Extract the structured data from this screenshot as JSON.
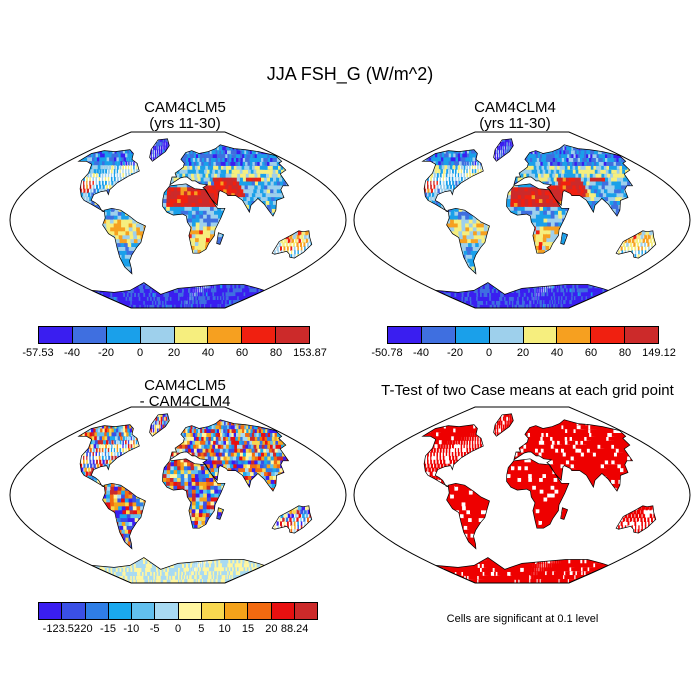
{
  "figure": {
    "title": "JJA FSH_G (W/m^2)"
  },
  "panels": [
    {
      "title_line1": "CAM4CLM5",
      "title_line2": "(yrs 11-30)",
      "variant": "case1"
    },
    {
      "title_line1": "CAM4CLM4",
      "title_line2": "(yrs 11-30)",
      "variant": "case2"
    },
    {
      "title_line1": "CAM4CLM5",
      "title_line2": "- CAM4CLM4",
      "variant": "diff"
    },
    {
      "title_line1": "T-Test of two Case means at each grid point",
      "title_line2": "",
      "variant": "ttest"
    }
  ],
  "colorbars": [
    {
      "labels": [
        "-57.53",
        "-40",
        "-20",
        "0",
        "20",
        "40",
        "60",
        "80",
        "153.87"
      ],
      "colors": [
        "#3a1ef0",
        "#3f6fe0",
        "#1aa0ea",
        "#9ed0ec",
        "#f6ee7e",
        "#f6a020",
        "#f02010",
        "#cc2a2a"
      ]
    },
    {
      "labels": [
        "-50.78",
        "-40",
        "-20",
        "0",
        "20",
        "40",
        "60",
        "80",
        "149.12"
      ],
      "colors": [
        "#3a1ef0",
        "#3f6fe0",
        "#1aa0ea",
        "#9ed0ec",
        "#f6ee7e",
        "#f6a020",
        "#f02010",
        "#cc2a2a"
      ]
    },
    {
      "labels": [
        "-123.52",
        "-20",
        "-15",
        "-10",
        "-5",
        "0",
        "5",
        "10",
        "15",
        "20",
        "88.24"
      ],
      "colors": [
        "#3a1ef0",
        "#3a50e6",
        "#2f7ee6",
        "#1aa8ee",
        "#62c0ee",
        "#a8daf2",
        "#fff6a0",
        "#f8d850",
        "#f4a21a",
        "#f26a10",
        "#e81010",
        "#cc2a2a"
      ]
    }
  ],
  "note": "Cells are significant at 0.1 level"
}
